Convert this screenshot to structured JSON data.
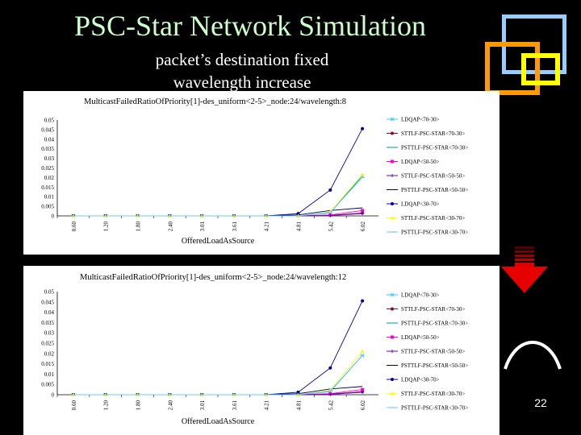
{
  "slide": {
    "title": "PSC-Star Network Simulation",
    "subtitle_line1": "packet’s destination fixed",
    "subtitle_line2": "wavelength increase",
    "page_number": "22"
  },
  "colors": {
    "title": "#ccffcc",
    "deco_blue": "#99ccff",
    "deco_orange": "#ff9900",
    "deco_yellow": "#ffff00",
    "arrow_red": "#e60000"
  },
  "icons": [
    "red-down-arrow-icon",
    "arc-curve-icon"
  ],
  "chart_data": [
    {
      "type": "line",
      "title": "MulticastFailedRatioOfPriority[1]-des_uniform<2-5>_node:24/wavelength:8",
      "xlabel": "OfferedLoadAsSource",
      "ylabel": "",
      "categories": [
        "0.60",
        "1.20",
        "1.80",
        "2.40",
        "3.01",
        "3.61",
        "4.21",
        "4.81",
        "5.42",
        "6.02"
      ],
      "ylim": [
        0,
        0.05
      ],
      "yticks": [
        "0",
        "0.005",
        "0.01",
        "0.015",
        "0.02",
        "0.025",
        "0.03",
        "0.035",
        "0.04",
        "0.045",
        "0.05"
      ],
      "grid": false,
      "legend_position": "right",
      "series": [
        {
          "name": "LDQAP<70-30>",
          "color": "#33ccff",
          "marker": "x",
          "values": [
            0,
            0,
            0,
            0,
            0,
            0,
            0,
            0,
            0.0015,
            0.0208
          ]
        },
        {
          "name": "STTLF-PSC-STAR<70-30>",
          "color": "#990033",
          "marker": "o",
          "values": [
            0,
            0,
            0,
            0,
            0,
            0,
            0,
            0,
            0.0003,
            0.0015
          ]
        },
        {
          "name": "PSTTLF-PSC-STAR<70-30>",
          "color": "#009999",
          "marker": "none",
          "values": [
            0,
            0,
            0,
            0,
            0,
            0,
            0,
            0,
            0.0018,
            0.021
          ]
        },
        {
          "name": "LDQAP<50-50>",
          "color": "#ff00cc",
          "marker": "s",
          "values": [
            0,
            0,
            0,
            0,
            0,
            0,
            0,
            0,
            0.0005,
            0.0028
          ]
        },
        {
          "name": "STTLF-PSC-STAR<50-50>",
          "color": "#6600cc",
          "marker": "+",
          "values": [
            0,
            0,
            0,
            0,
            0,
            0,
            0,
            0,
            0.0002,
            0.0012
          ]
        },
        {
          "name": "PSTTLF-PSC-STAR<50-50>",
          "color": "#000066",
          "marker": "none",
          "values": [
            0,
            0,
            0,
            0,
            0,
            0,
            0,
            0.0005,
            0.0028,
            0.0042
          ]
        },
        {
          "name": "LDQAP<30-70>",
          "color": "#000099",
          "marker": "o",
          "values": [
            0,
            0,
            0,
            0,
            0,
            0,
            0,
            0.0012,
            0.0135,
            0.0455
          ]
        },
        {
          "name": "STTLF-PSC-STAR<30-70>",
          "color": "#ffff00",
          "marker": "^",
          "values": [
            0,
            0,
            0,
            0,
            0,
            0,
            0,
            0,
            0.0022,
            0.0215
          ]
        },
        {
          "name": "PSTTLF-PSC-STAR<30-70>",
          "color": "#66ccff",
          "marker": "-",
          "values": [
            0,
            0,
            0,
            0,
            0,
            0,
            0,
            0,
            0.0018,
            0.02
          ]
        }
      ]
    },
    {
      "type": "line",
      "title": "MulticastFailedRatioOfPriority[1]-des_uniform<2-5>_node:24/wavelength:12",
      "xlabel": "OfferedLoadAsSource",
      "ylabel": "",
      "categories": [
        "0.60",
        "1.20",
        "1.80",
        "2.40",
        "3.01",
        "3.61",
        "4.21",
        "4.81",
        "5.42",
        "6.02"
      ],
      "ylim": [
        0,
        0.05
      ],
      "yticks": [
        "0",
        "0.005",
        "0.01",
        "0.015",
        "0.02",
        "0.025",
        "0.03",
        "0.035",
        "0.04",
        "0.045",
        "0.05"
      ],
      "grid": false,
      "legend_position": "right",
      "series": [
        {
          "name": "LDQAP<70-30>",
          "color": "#33ccff",
          "marker": "x",
          "values": [
            0,
            0,
            0,
            0,
            0,
            0,
            0,
            0,
            0.0015,
            0.019
          ]
        },
        {
          "name": "STTLF-PSC-STAR<70-30>",
          "color": "#990033",
          "marker": "o",
          "values": [
            0,
            0,
            0,
            0,
            0,
            0,
            0,
            0,
            0.0003,
            0.0015
          ]
        },
        {
          "name": "PSTTLF-PSC-STAR<70-30>",
          "color": "#009999",
          "marker": "none",
          "values": [
            0,
            0,
            0,
            0,
            0,
            0,
            0,
            0,
            0.0018,
            0.019
          ]
        },
        {
          "name": "LDQAP<50-50>",
          "color": "#ff00cc",
          "marker": "s",
          "values": [
            0,
            0,
            0,
            0,
            0,
            0,
            0,
            0,
            0.0005,
            0.0025
          ]
        },
        {
          "name": "STTLF-PSC-STAR<50-50>",
          "color": "#6600cc",
          "marker": "+",
          "values": [
            0,
            0,
            0,
            0,
            0,
            0,
            0,
            0,
            0.0002,
            0.0012
          ]
        },
        {
          "name": "PSTTLF-PSC-STAR<50-50>",
          "color": "#000066",
          "marker": "none",
          "values": [
            0,
            0,
            0,
            0,
            0,
            0,
            0,
            0.0005,
            0.0028,
            0.004
          ]
        },
        {
          "name": "LDQAP<30-70>",
          "color": "#000099",
          "marker": "o",
          "values": [
            0,
            0,
            0,
            0,
            0,
            0,
            0,
            0.0012,
            0.013,
            0.0455
          ]
        },
        {
          "name": "STTLF-PSC-STAR<30-70>",
          "color": "#ffff00",
          "marker": "^",
          "values": [
            0,
            0,
            0,
            0,
            0,
            0,
            0,
            0,
            0.0022,
            0.021
          ]
        },
        {
          "name": "PSTTLF-PSC-STAR<30-70>",
          "color": "#66ccff",
          "marker": "-",
          "values": [
            0,
            0,
            0,
            0,
            0,
            0,
            0,
            0,
            0.0018,
            0.019
          ]
        }
      ]
    }
  ]
}
